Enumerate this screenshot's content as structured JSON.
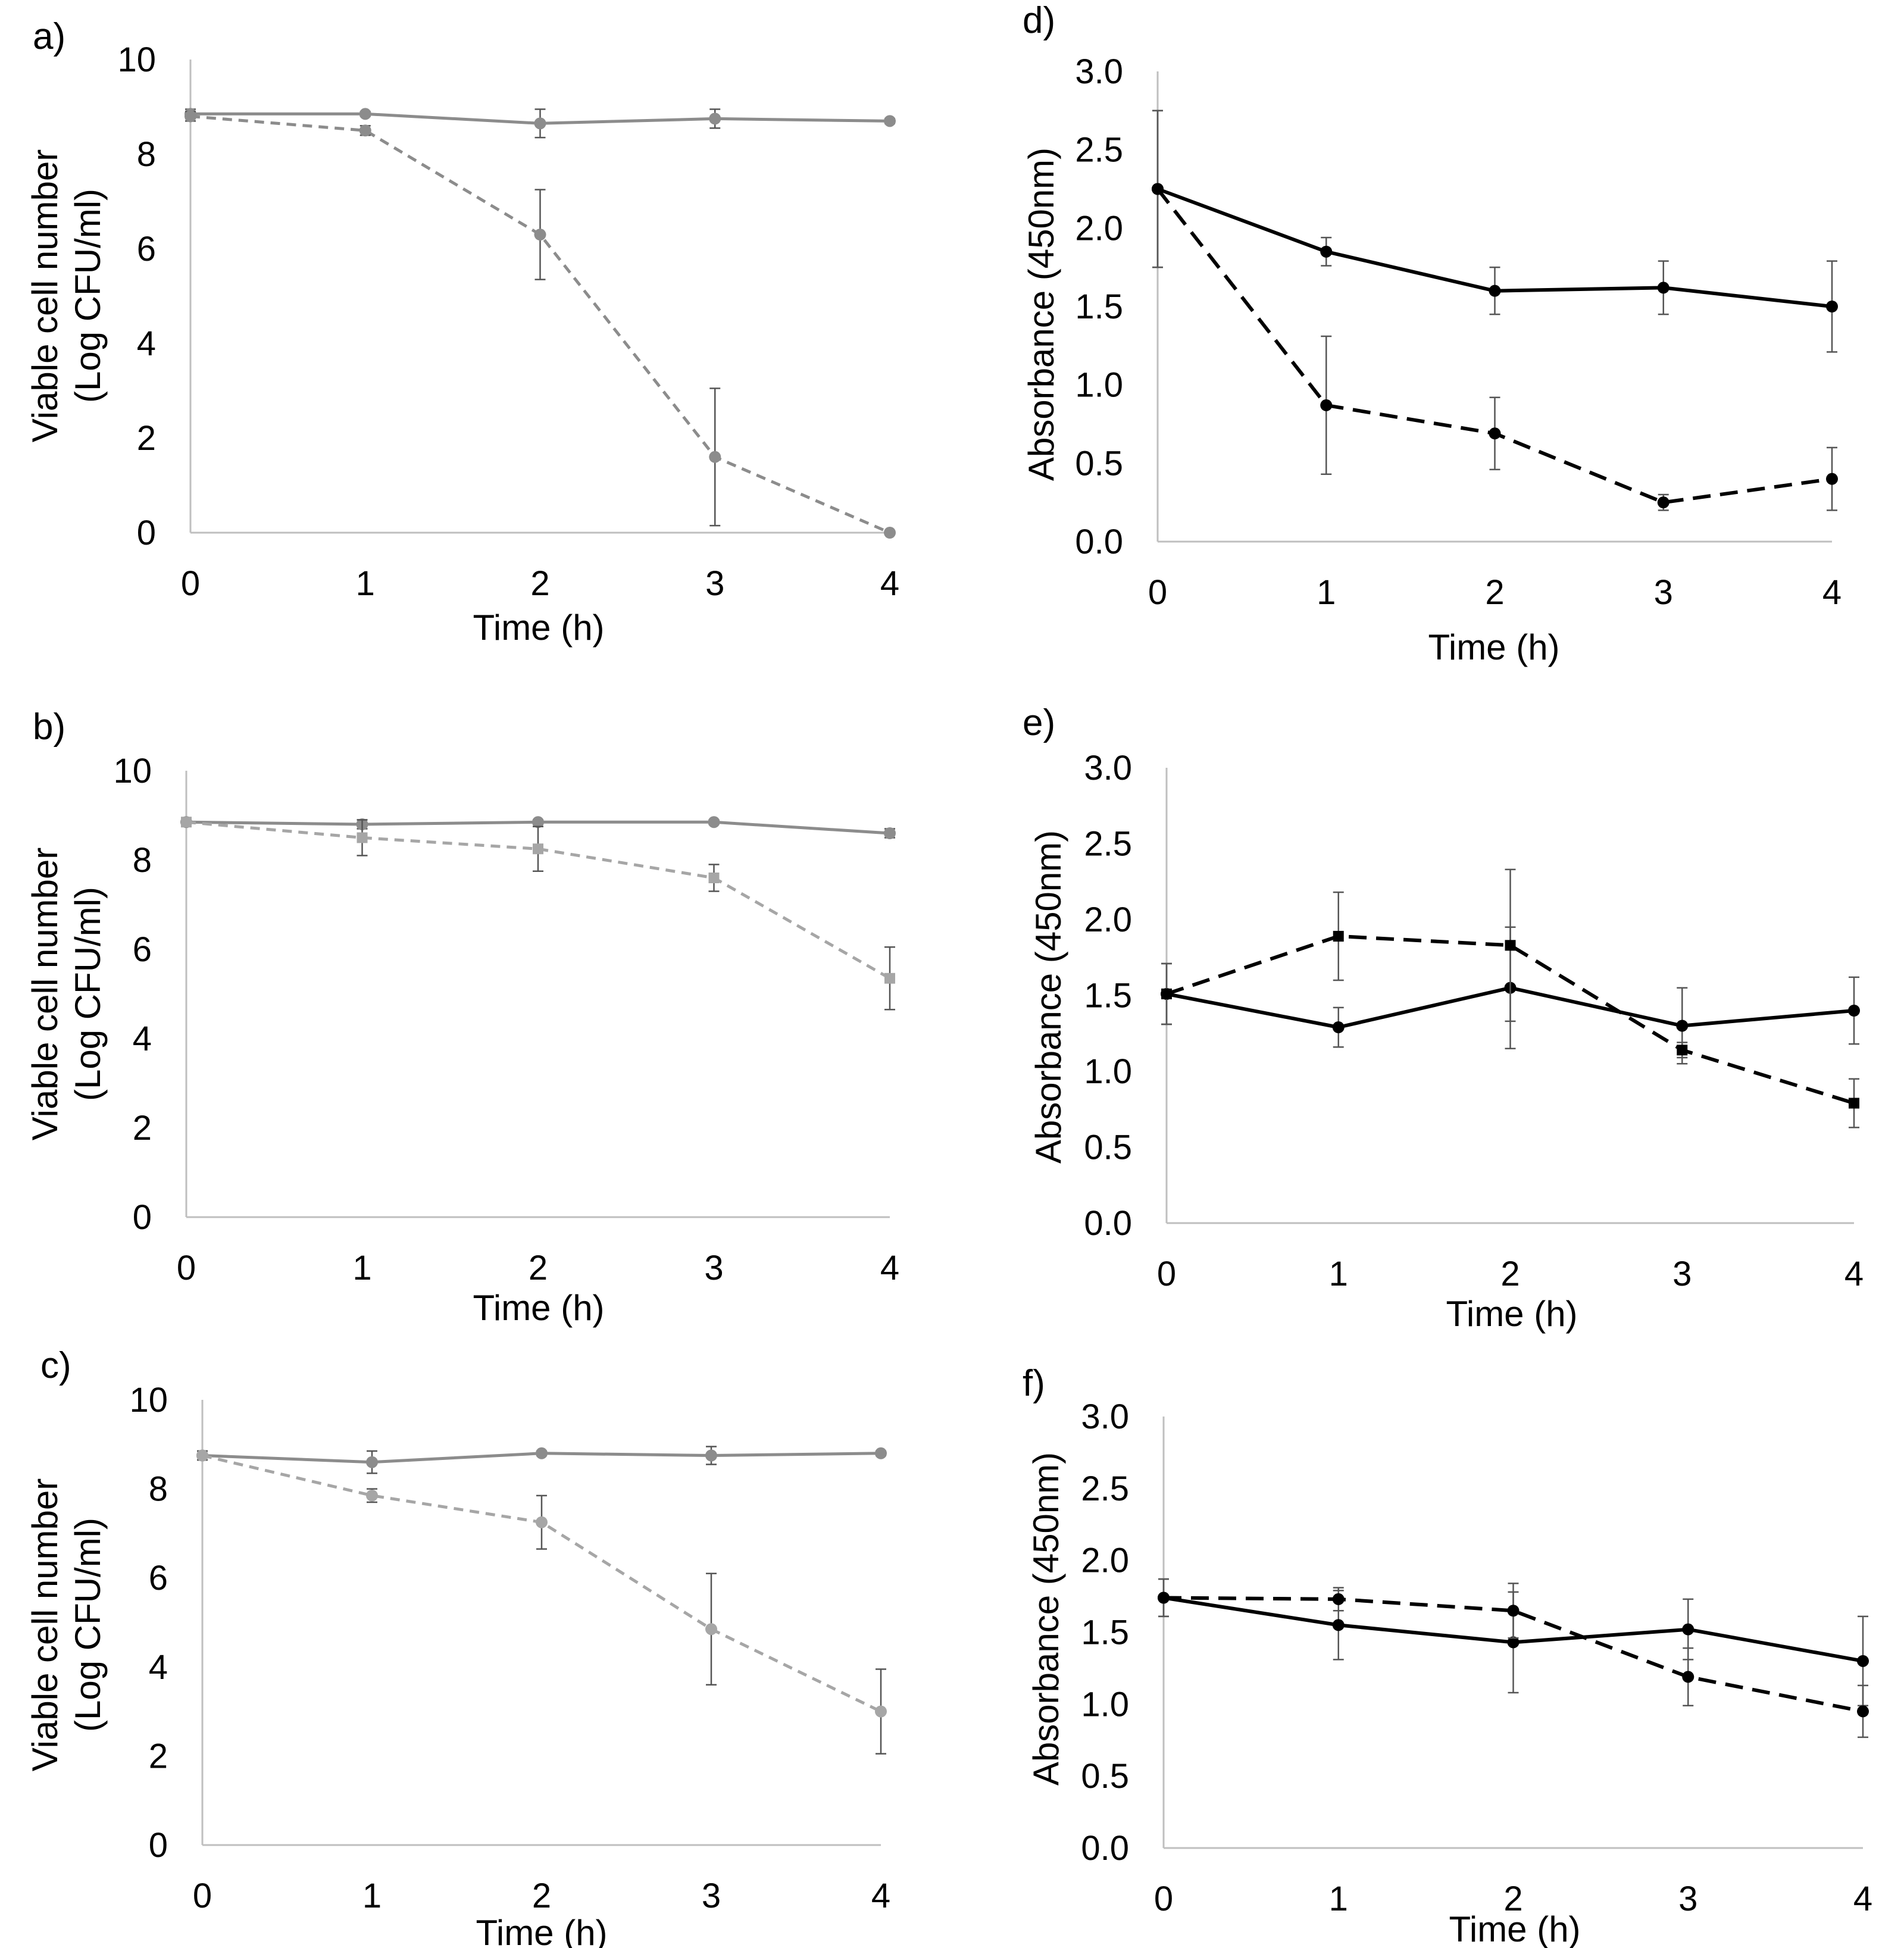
{
  "figure": {
    "colors": {
      "gray": "#8c8c8c",
      "light_gray": "#a6a6a6",
      "black": "#000000",
      "axis": "#bfbfbf"
    }
  },
  "chart_data": [
    {
      "id": "a",
      "panel_label": "a)",
      "type": "line",
      "xlabel": "Time (h)",
      "ylabel": "Viable cell number",
      "ylabel2": "(Log CFU/ml)",
      "x": [
        0,
        1,
        2,
        3,
        4
      ],
      "xlim": [
        0,
        4
      ],
      "ylim": [
        0,
        10
      ],
      "x_ticks": [
        "0",
        "1",
        "2",
        "3",
        "4"
      ],
      "y_ticks": [
        "0",
        "2",
        "4",
        "6",
        "8",
        "10"
      ],
      "y_tick_values": [
        0,
        2,
        4,
        6,
        8,
        10
      ],
      "series": [
        {
          "name": "solid",
          "style": "solid",
          "color": "#8c8c8c",
          "marker": "circle",
          "values": [
            8.85,
            8.85,
            8.65,
            8.75,
            8.7
          ],
          "err": [
            0.1,
            0.05,
            0.3,
            0.2,
            0.05
          ]
        },
        {
          "name": "dashed",
          "style": "dashed",
          "color": "#8c8c8c",
          "marker": "circle",
          "values": [
            8.8,
            8.5,
            6.3,
            1.6,
            0.0
          ],
          "err": [
            0.1,
            0.1,
            0.95,
            1.45,
            0.0
          ]
        }
      ]
    },
    {
      "id": "b",
      "panel_label": "b)",
      "type": "line",
      "xlabel": "Time (h)",
      "ylabel": "Viable cell number",
      "ylabel2": "(Log CFU/ml)",
      "x": [
        0,
        1,
        2,
        3,
        4
      ],
      "xlim": [
        0,
        4
      ],
      "ylim": [
        0,
        10
      ],
      "x_ticks": [
        "0",
        "1",
        "2",
        "3",
        "4"
      ],
      "y_ticks": [
        "0",
        "2",
        "4",
        "6",
        "8",
        "10"
      ],
      "y_tick_values": [
        0,
        2,
        4,
        6,
        8,
        10
      ],
      "series": [
        {
          "name": "solid",
          "style": "solid",
          "color": "#8c8c8c",
          "marker": "circle",
          "values": [
            8.85,
            8.8,
            8.85,
            8.85,
            8.6
          ],
          "err": [
            0.05,
            0.1,
            0.05,
            0.05,
            0.1
          ]
        },
        {
          "name": "dashed",
          "style": "dashed",
          "color": "#a6a6a6",
          "marker": "square",
          "values": [
            8.85,
            8.5,
            8.25,
            7.6,
            5.35
          ],
          "err": [
            0.05,
            0.4,
            0.5,
            0.3,
            0.7
          ]
        }
      ]
    },
    {
      "id": "c",
      "panel_label": "c)",
      "type": "line",
      "xlabel": "Time (h)",
      "ylabel": "Viable cell number",
      "ylabel2": "(Log CFU/ml)",
      "x": [
        0,
        1,
        2,
        3,
        4
      ],
      "xlim": [
        0,
        4
      ],
      "ylim": [
        0,
        10
      ],
      "x_ticks": [
        "0",
        "1",
        "2",
        "3",
        "4"
      ],
      "y_ticks": [
        "0",
        "2",
        "4",
        "6",
        "8",
        "10"
      ],
      "y_tick_values": [
        0,
        2,
        4,
        6,
        8,
        10
      ],
      "series": [
        {
          "name": "solid",
          "style": "solid",
          "color": "#8c8c8c",
          "marker": "circle",
          "values": [
            8.75,
            8.6,
            8.8,
            8.75,
            8.8
          ],
          "err": [
            0.1,
            0.25,
            0.05,
            0.2,
            0.05
          ]
        },
        {
          "name": "dashed",
          "style": "dashed",
          "color": "#a6a6a6",
          "marker": "circle",
          "values": [
            8.75,
            7.85,
            7.25,
            4.85,
            3.0
          ],
          "err": [
            0.1,
            0.15,
            0.6,
            1.25,
            0.95
          ]
        }
      ]
    },
    {
      "id": "d",
      "panel_label": "d)",
      "type": "line",
      "xlabel": "Time (h)",
      "ylabel": "Absorbance (450nm)",
      "ylabel2": "",
      "x": [
        0,
        1,
        2,
        3,
        4
      ],
      "xlim": [
        0,
        4
      ],
      "ylim": [
        0,
        3
      ],
      "x_ticks": [
        "0",
        "1",
        "2",
        "3",
        "4"
      ],
      "y_ticks": [
        "0.0",
        "0.5",
        "1.0",
        "1.5",
        "2.0",
        "2.5",
        "3.0"
      ],
      "y_tick_values": [
        0,
        0.5,
        1,
        1.5,
        2,
        2.5,
        3
      ],
      "series": [
        {
          "name": "solid",
          "style": "solid",
          "color": "#000000",
          "marker": "circle",
          "values": [
            2.25,
            1.85,
            1.6,
            1.62,
            1.5
          ],
          "err": [
            0.5,
            0.09,
            0.15,
            0.17,
            0.29
          ]
        },
        {
          "name": "dashed",
          "style": "dashed",
          "color": "#000000",
          "marker": "circle",
          "values": [
            2.25,
            0.87,
            0.69,
            0.25,
            0.4
          ],
          "err": [
            0.5,
            0.44,
            0.23,
            0.05,
            0.2
          ]
        }
      ]
    },
    {
      "id": "e",
      "panel_label": "e)",
      "type": "line",
      "xlabel": "Time (h)",
      "ylabel": "Absorbance (450nm)",
      "ylabel2": "",
      "x": [
        0,
        1,
        2,
        3,
        4
      ],
      "xlim": [
        0,
        4
      ],
      "ylim": [
        0,
        3
      ],
      "x_ticks": [
        "0",
        "1",
        "2",
        "3",
        "4"
      ],
      "y_ticks": [
        "0.0",
        "0.5",
        "1.0",
        "1.5",
        "2.0",
        "2.5",
        "3.0"
      ],
      "y_tick_values": [
        0,
        0.5,
        1,
        1.5,
        2,
        2.5,
        3
      ],
      "series": [
        {
          "name": "solid",
          "style": "solid",
          "color": "#000000",
          "marker": "circle",
          "values": [
            1.51,
            1.29,
            1.55,
            1.3,
            1.4
          ],
          "err": [
            0.2,
            0.13,
            0.4,
            0.25,
            0.22
          ]
        },
        {
          "name": "dashed",
          "style": "dashed",
          "color": "#000000",
          "marker": "square",
          "values": [
            1.51,
            1.89,
            1.83,
            1.14,
            0.79
          ],
          "err": [
            0.2,
            0.29,
            0.5,
            0.05,
            0.16
          ]
        }
      ]
    },
    {
      "id": "f",
      "panel_label": "f)",
      "type": "line",
      "xlabel": "Time (h)",
      "ylabel": "Absorbance (450nm)",
      "ylabel2": "",
      "x": [
        0,
        1,
        2,
        3,
        4
      ],
      "xlim": [
        0,
        4
      ],
      "ylim": [
        0,
        3
      ],
      "x_ticks": [
        "0",
        "1",
        "2",
        "3",
        "4"
      ],
      "y_ticks": [
        "0.0",
        "0.5",
        "1.0",
        "1.5",
        "2.0",
        "2.5",
        "3.0"
      ],
      "y_tick_values": [
        0,
        0.5,
        1,
        1.5,
        2,
        2.5,
        3
      ],
      "series": [
        {
          "name": "solid",
          "style": "solid",
          "color": "#000000",
          "marker": "circle",
          "values": [
            1.74,
            1.55,
            1.43,
            1.52,
            1.3
          ],
          "err": [
            0.13,
            0.24,
            0.35,
            0.21,
            0.31
          ]
        },
        {
          "name": "dashed",
          "style": "dashed",
          "color": "#000000",
          "marker": "circle",
          "values": [
            1.74,
            1.73,
            1.65,
            1.19,
            0.95
          ],
          "err": [
            0.13,
            0.08,
            0.19,
            0.2,
            0.18
          ]
        }
      ]
    }
  ]
}
